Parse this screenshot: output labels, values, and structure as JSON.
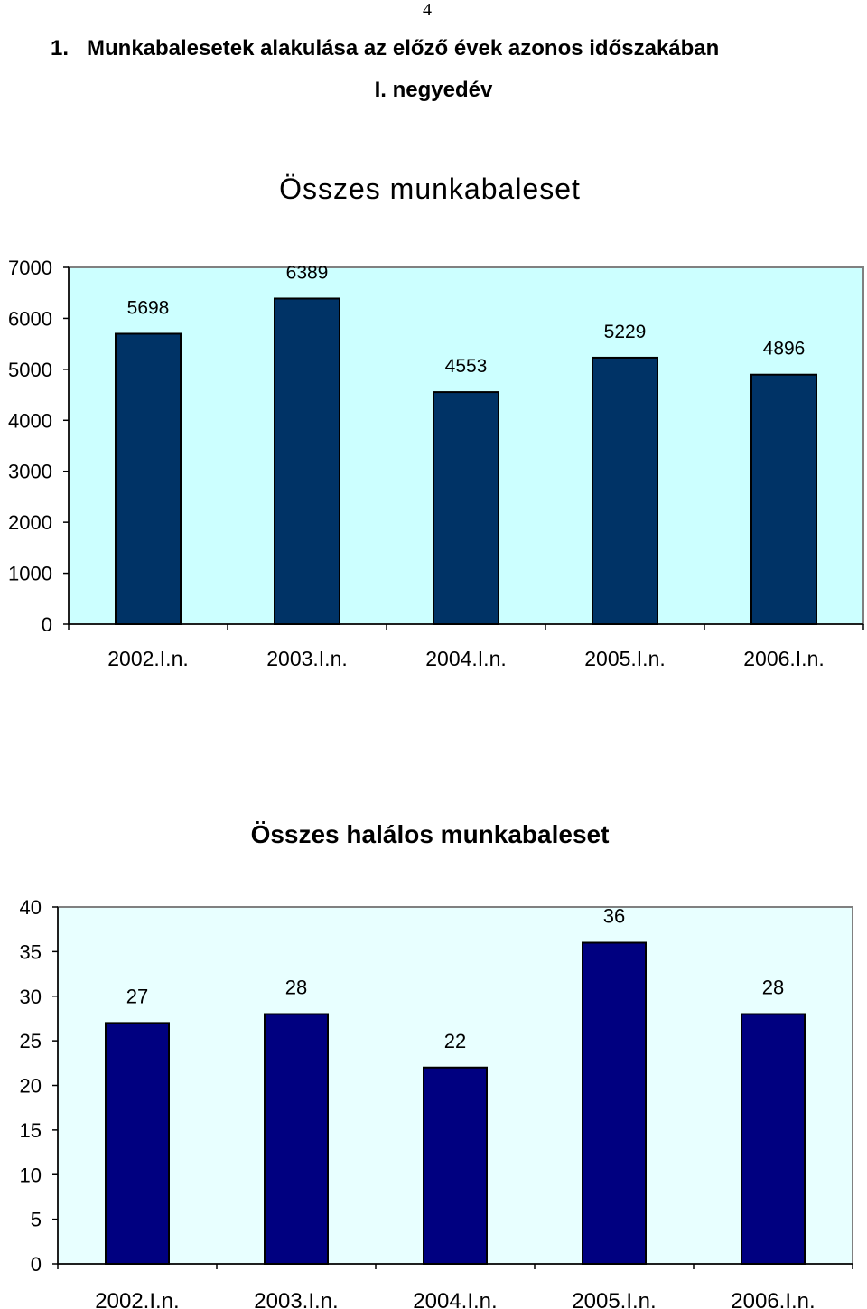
{
  "page_number": "4",
  "section": {
    "number": "1.",
    "title": "Munkabalesetek alakulása az előző évek azonos időszakában",
    "subtitle": "I. negyedév"
  },
  "colors": {
    "plot_bg_1": "#ccffff",
    "bar_1": "#003366",
    "plot_bg_2": "#e8ffff",
    "bar_2": "#000080"
  },
  "chart_data": [
    {
      "type": "bar",
      "title": "Összes munkabaleset",
      "categories": [
        "2002.I.n.",
        "2003.I.n.",
        "2004.I.n.",
        "2005.I.n.",
        "2006.I.n."
      ],
      "values": [
        5698,
        6389,
        4553,
        5229,
        4896
      ],
      "yticks": [
        "0",
        "1000",
        "2000",
        "3000",
        "4000",
        "5000",
        "6000",
        "7000"
      ],
      "ylim": [
        0,
        7000
      ],
      "xlabel": "",
      "ylabel": "",
      "grid": false,
      "legend": "none"
    },
    {
      "type": "bar",
      "title": "Összes halálos munkabaleset",
      "categories": [
        "2002.I.n.",
        "2003.I.n.",
        "2004.I.n.",
        "2005.I.n.",
        "2006.I.n."
      ],
      "values": [
        27,
        28,
        22,
        36,
        28
      ],
      "yticks": [
        "0",
        "5",
        "10",
        "15",
        "20",
        "25",
        "30",
        "35",
        "40"
      ],
      "ylim": [
        0,
        40
      ],
      "xlabel": "",
      "ylabel": "",
      "grid": false,
      "legend": "none"
    }
  ]
}
